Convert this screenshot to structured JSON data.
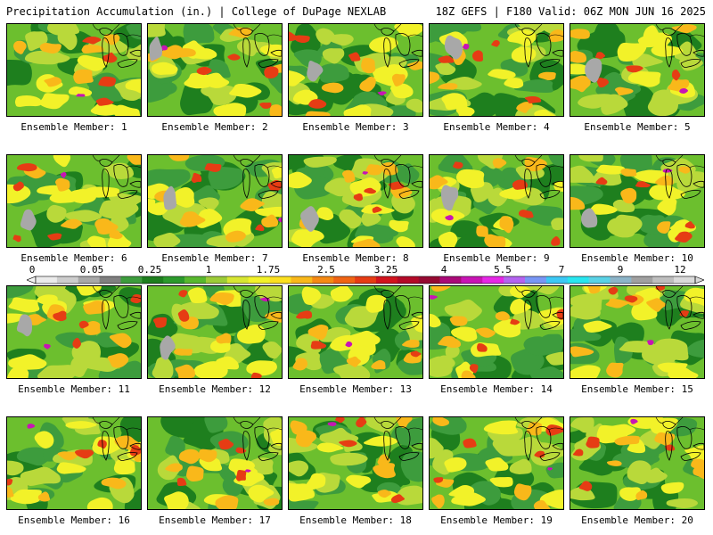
{
  "header": {
    "left_title": "Precipitation Accumulation (in.) | College of DuPage NEXLAB",
    "right_title": "18Z GEFS | F180 Valid: 06Z MON JUN 16 2025"
  },
  "panels": [
    {
      "label": "Ensemble Member: 1"
    },
    {
      "label": "Ensemble Member: 2"
    },
    {
      "label": "Ensemble Member: 3"
    },
    {
      "label": "Ensemble Member: 4"
    },
    {
      "label": "Ensemble Member: 5"
    },
    {
      "label": "Ensemble Member: 6"
    },
    {
      "label": "Ensemble Member: 7"
    },
    {
      "label": "Ensemble Member: 8"
    },
    {
      "label": "Ensemble Member: 9"
    },
    {
      "label": "Ensemble Member: 10"
    },
    {
      "label": "Ensemble Member: 11"
    },
    {
      "label": "Ensemble Member: 12"
    },
    {
      "label": "Ensemble Member: 13"
    },
    {
      "label": "Ensemble Member: 14"
    },
    {
      "label": "Ensemble Member: 15"
    },
    {
      "label": "Ensemble Member: 16"
    },
    {
      "label": "Ensemble Member: 17"
    },
    {
      "label": "Ensemble Member: 18"
    },
    {
      "label": "Ensemble Member: 19"
    },
    {
      "label": "Ensemble Member: 20"
    }
  ],
  "colorbar": {
    "tick_labels": [
      "0",
      "0.05",
      "0.25",
      "1",
      "1.75",
      "2.5",
      "3.25",
      "4",
      "5.5",
      "7",
      "9",
      "12"
    ],
    "colors": [
      "#ebebeb",
      "#cdcdcd",
      "#a8a8a8",
      "#808080",
      "#3d9c3d",
      "#1e7f1e",
      "#2c9a2c",
      "#58b82e",
      "#9ccc38",
      "#d7e632",
      "#f2f229",
      "#fce01f",
      "#f9b81a",
      "#f58a14",
      "#f06414",
      "#e63c14",
      "#d2141e",
      "#b40a28",
      "#960a32",
      "#aa0a78",
      "#c814b4",
      "#e628e6",
      "#b464f0",
      "#7896f5",
      "#3cc8f5",
      "#28e6f0",
      "#5ad2e6",
      "#8cb4c8",
      "#a0a0a0",
      "#bebebe",
      "#dadada"
    ]
  },
  "map_palette": {
    "green_dark": "#1e7f1e",
    "green": "#3d9c3d",
    "green_light": "#6cbf2e",
    "yellow_green": "#b9d93a",
    "yellow": "#f2f229",
    "orange": "#f9b81a",
    "red": "#e63c14",
    "magenta": "#c814b4",
    "gray": "#a8a8a8"
  }
}
